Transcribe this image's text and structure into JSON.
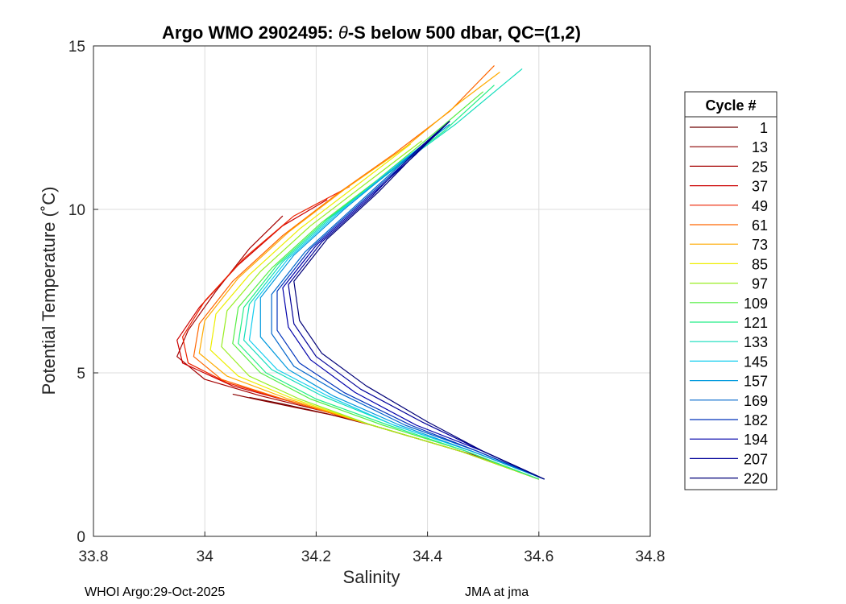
{
  "chart_data": {
    "type": "line",
    "title_prefix": "Argo WMO 2902495: ",
    "title_theta": "θ",
    "title_suffix": "-S below 500 dbar,  QC=(1,2)",
    "xlabel": "Salinity",
    "ylabel": "Potential Temperature (˚C)",
    "xlim": [
      33.8,
      34.8
    ],
    "ylim": [
      0,
      15
    ],
    "xticks": [
      33.8,
      34,
      34.2,
      34.4,
      34.6,
      34.8
    ],
    "xtick_labels": [
      "33.8",
      "34",
      "34.2",
      "34.4",
      "34.6",
      "34.8"
    ],
    "yticks": [
      0,
      5,
      10,
      15
    ],
    "ytick_labels": [
      "0",
      "5",
      "10",
      "15"
    ],
    "grid": true,
    "legend_title": "Cycle #",
    "legend_position": "right",
    "series": [
      {
        "name": "1",
        "color": "#6e0000",
        "points": [
          [
            34.6,
            1.75
          ],
          [
            34.5,
            2.4
          ],
          [
            34.4,
            2.9
          ],
          [
            34.3,
            3.4
          ],
          [
            34.22,
            3.75
          ],
          [
            34.14,
            4.05
          ],
          [
            34.08,
            4.25
          ]
        ]
      },
      {
        "name": "13",
        "color": "#8a0000",
        "points": [
          [
            34.6,
            1.75
          ],
          [
            34.48,
            2.5
          ],
          [
            34.36,
            3.1
          ],
          [
            34.26,
            3.6
          ],
          [
            34.16,
            3.95
          ],
          [
            34.09,
            4.2
          ],
          [
            34.05,
            4.35
          ]
        ]
      },
      {
        "name": "25",
        "color": "#a50000",
        "points": [
          [
            34.6,
            1.75
          ],
          [
            34.48,
            2.5
          ],
          [
            34.34,
            3.2
          ],
          [
            34.22,
            3.8
          ],
          [
            34.1,
            4.3
          ],
          [
            34.0,
            4.8
          ],
          [
            33.95,
            5.5
          ],
          [
            33.97,
            6.3
          ],
          [
            34.02,
            7.5
          ],
          [
            34.08,
            8.8
          ],
          [
            34.14,
            9.8
          ]
        ]
      },
      {
        "name": "37",
        "color": "#cc0000",
        "points": [
          [
            34.6,
            1.75
          ],
          [
            34.46,
            2.6
          ],
          [
            34.32,
            3.3
          ],
          [
            34.18,
            4.0
          ],
          [
            34.05,
            4.6
          ],
          [
            33.96,
            5.3
          ],
          [
            33.95,
            6.0
          ],
          [
            33.99,
            7.0
          ],
          [
            34.06,
            8.3
          ],
          [
            34.14,
            9.5
          ],
          [
            34.22,
            10.3
          ]
        ]
      },
      {
        "name": "49",
        "color": "#ee2200",
        "points": [
          [
            34.6,
            1.75
          ],
          [
            34.46,
            2.6
          ],
          [
            34.3,
            3.4
          ],
          [
            34.16,
            4.1
          ],
          [
            34.04,
            4.7
          ],
          [
            33.97,
            5.3
          ],
          [
            33.96,
            6.1
          ],
          [
            34.0,
            7.2
          ],
          [
            34.07,
            8.5
          ],
          [
            34.16,
            9.8
          ],
          [
            34.26,
            10.7
          ]
        ]
      },
      {
        "name": "61",
        "color": "#ff6600",
        "points": [
          [
            34.6,
            1.75
          ],
          [
            34.46,
            2.6
          ],
          [
            34.3,
            3.4
          ],
          [
            34.14,
            4.2
          ],
          [
            34.03,
            4.8
          ],
          [
            33.98,
            5.5
          ],
          [
            33.99,
            6.5
          ],
          [
            34.05,
            7.8
          ],
          [
            34.14,
            9.2
          ],
          [
            34.24,
            10.5
          ],
          [
            34.34,
            11.7
          ],
          [
            34.44,
            13.0
          ],
          [
            34.52,
            14.4
          ]
        ]
      },
      {
        "name": "73",
        "color": "#ffaa00",
        "points": [
          [
            34.6,
            1.75
          ],
          [
            34.46,
            2.6
          ],
          [
            34.3,
            3.4
          ],
          [
            34.15,
            4.2
          ],
          [
            34.04,
            4.9
          ],
          [
            33.99,
            5.6
          ],
          [
            34.0,
            6.6
          ],
          [
            34.06,
            7.9
          ],
          [
            34.15,
            9.3
          ],
          [
            34.25,
            10.6
          ],
          [
            34.36,
            11.9
          ],
          [
            34.46,
            13.3
          ],
          [
            34.53,
            14.2
          ]
        ]
      },
      {
        "name": "85",
        "color": "#eeee00",
        "points": [
          [
            34.6,
            1.75
          ],
          [
            34.46,
            2.6
          ],
          [
            34.3,
            3.4
          ],
          [
            34.16,
            4.2
          ],
          [
            34.06,
            4.9
          ],
          [
            34.01,
            5.7
          ],
          [
            34.02,
            6.8
          ],
          [
            34.08,
            8.0
          ],
          [
            34.17,
            9.4
          ],
          [
            34.27,
            10.7
          ],
          [
            34.37,
            12.0
          ]
        ]
      },
      {
        "name": "97",
        "color": "#99ee22",
        "points": [
          [
            34.6,
            1.75
          ],
          [
            34.46,
            2.6
          ],
          [
            34.3,
            3.4
          ],
          [
            34.17,
            4.2
          ],
          [
            34.08,
            4.9
          ],
          [
            34.03,
            5.8
          ],
          [
            34.04,
            6.9
          ],
          [
            34.1,
            8.1
          ],
          [
            34.19,
            9.5
          ],
          [
            34.29,
            10.8
          ],
          [
            34.39,
            12.1
          ]
        ]
      },
      {
        "name": "109",
        "color": "#55ee44",
        "points": [
          [
            34.6,
            1.75
          ],
          [
            34.47,
            2.6
          ],
          [
            34.32,
            3.4
          ],
          [
            34.19,
            4.2
          ],
          [
            34.1,
            5.0
          ],
          [
            34.05,
            5.9
          ],
          [
            34.06,
            7.0
          ],
          [
            34.12,
            8.2
          ],
          [
            34.21,
            9.6
          ],
          [
            34.31,
            10.9
          ],
          [
            34.41,
            12.3
          ],
          [
            34.5,
            13.6
          ]
        ]
      },
      {
        "name": "121",
        "color": "#22ee88",
        "points": [
          [
            34.6,
            1.75
          ],
          [
            34.47,
            2.6
          ],
          [
            34.33,
            3.4
          ],
          [
            34.2,
            4.2
          ],
          [
            34.11,
            5.0
          ],
          [
            34.06,
            5.9
          ],
          [
            34.07,
            7.0
          ],
          [
            34.13,
            8.3
          ],
          [
            34.22,
            9.7
          ],
          [
            34.32,
            11.0
          ],
          [
            34.43,
            12.4
          ],
          [
            34.52,
            13.8
          ]
        ]
      },
      {
        "name": "133",
        "color": "#11ddbb",
        "points": [
          [
            34.61,
            1.75
          ],
          [
            34.48,
            2.6
          ],
          [
            34.34,
            3.4
          ],
          [
            34.21,
            4.3
          ],
          [
            34.12,
            5.1
          ],
          [
            34.07,
            6.0
          ],
          [
            34.08,
            7.1
          ],
          [
            34.14,
            8.4
          ],
          [
            34.23,
            9.8
          ],
          [
            34.33,
            11.1
          ],
          [
            34.45,
            12.6
          ],
          [
            34.57,
            14.3
          ]
        ]
      },
      {
        "name": "145",
        "color": "#11ccee",
        "points": [
          [
            34.61,
            1.75
          ],
          [
            34.48,
            2.6
          ],
          [
            34.34,
            3.4
          ],
          [
            34.22,
            4.3
          ],
          [
            34.13,
            5.1
          ],
          [
            34.08,
            6.0
          ],
          [
            34.09,
            7.2
          ],
          [
            34.15,
            8.5
          ],
          [
            34.24,
            9.9
          ],
          [
            34.34,
            11.3
          ],
          [
            34.44,
            12.6
          ]
        ]
      },
      {
        "name": "157",
        "color": "#0099dd",
        "points": [
          [
            34.61,
            1.75
          ],
          [
            34.48,
            2.6
          ],
          [
            34.35,
            3.4
          ],
          [
            34.23,
            4.3
          ],
          [
            34.15,
            5.1
          ],
          [
            34.1,
            6.1
          ],
          [
            34.1,
            7.3
          ],
          [
            34.16,
            8.6
          ],
          [
            34.25,
            10.0
          ],
          [
            34.35,
            11.4
          ],
          [
            34.44,
            12.6
          ]
        ]
      },
      {
        "name": "169",
        "color": "#0066cc",
        "points": [
          [
            34.61,
            1.75
          ],
          [
            34.49,
            2.6
          ],
          [
            34.36,
            3.4
          ],
          [
            34.24,
            4.4
          ],
          [
            34.16,
            5.2
          ],
          [
            34.12,
            6.2
          ],
          [
            34.12,
            7.4
          ],
          [
            34.18,
            8.7
          ],
          [
            34.27,
            10.1
          ],
          [
            34.36,
            11.5
          ],
          [
            34.44,
            12.7
          ]
        ]
      },
      {
        "name": "182",
        "color": "#0033bb",
        "points": [
          [
            34.61,
            1.75
          ],
          [
            34.49,
            2.6
          ],
          [
            34.37,
            3.4
          ],
          [
            34.25,
            4.4
          ],
          [
            34.17,
            5.3
          ],
          [
            34.13,
            6.3
          ],
          [
            34.13,
            7.5
          ],
          [
            34.19,
            8.8
          ],
          [
            34.28,
            10.2
          ],
          [
            34.37,
            11.6
          ],
          [
            34.44,
            12.7
          ]
        ]
      },
      {
        "name": "194",
        "color": "#0000aa",
        "points": [
          [
            34.61,
            1.75
          ],
          [
            34.5,
            2.6
          ],
          [
            34.38,
            3.4
          ],
          [
            34.27,
            4.4
          ],
          [
            34.19,
            5.4
          ],
          [
            34.15,
            6.4
          ],
          [
            34.14,
            7.6
          ],
          [
            34.2,
            8.9
          ],
          [
            34.29,
            10.3
          ],
          [
            34.38,
            11.7
          ],
          [
            34.44,
            12.7
          ]
        ]
      },
      {
        "name": "207",
        "color": "#000099",
        "points": [
          [
            34.61,
            1.75
          ],
          [
            34.5,
            2.6
          ],
          [
            34.39,
            3.5
          ],
          [
            34.28,
            4.5
          ],
          [
            34.2,
            5.5
          ],
          [
            34.16,
            6.5
          ],
          [
            34.15,
            7.7
          ],
          [
            34.21,
            9.0
          ],
          [
            34.3,
            10.4
          ],
          [
            34.38,
            11.8
          ],
          [
            34.44,
            12.7
          ]
        ]
      },
      {
        "name": "220",
        "color": "#000077",
        "points": [
          [
            34.61,
            1.75
          ],
          [
            34.5,
            2.6
          ],
          [
            34.4,
            3.5
          ],
          [
            34.29,
            4.6
          ],
          [
            34.21,
            5.6
          ],
          [
            34.17,
            6.6
          ],
          [
            34.16,
            7.8
          ],
          [
            34.22,
            9.1
          ],
          [
            34.31,
            10.5
          ],
          [
            34.39,
            11.9
          ],
          [
            34.44,
            12.7
          ]
        ]
      }
    ]
  },
  "footer": {
    "left": "WHOI Argo:29-Oct-2025",
    "right": "JMA at jma"
  }
}
